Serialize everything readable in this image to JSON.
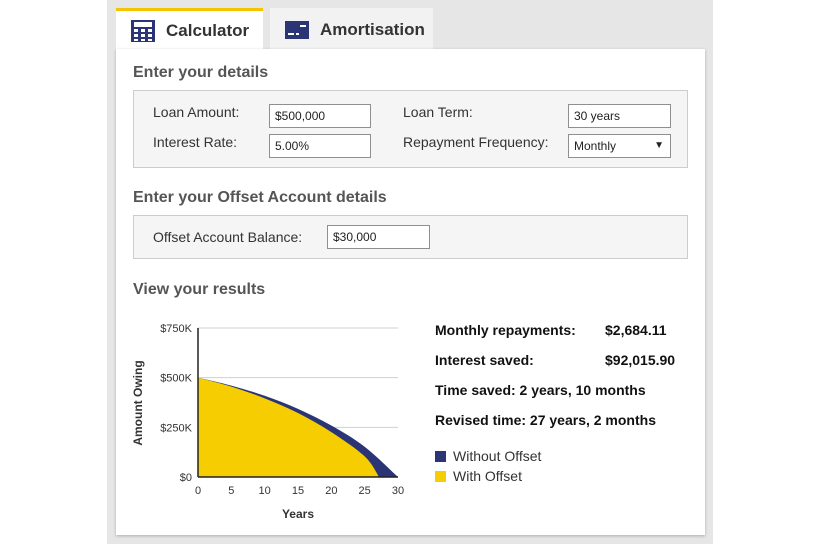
{
  "tabs": [
    {
      "label": "Calculator",
      "icon": "calculator-icon",
      "active": true
    },
    {
      "label": "Amortisation",
      "icon": "card-icon",
      "active": false
    }
  ],
  "details": {
    "title": "Enter your details",
    "loan_amount_label": "Loan Amount:",
    "loan_amount_value": "$500,000",
    "interest_rate_label": "Interest Rate:",
    "interest_rate_value": "5.00%",
    "loan_term_label": "Loan Term:",
    "loan_term_value": "30 years",
    "frequency_label": "Repayment Frequency:",
    "frequency_value": "Monthly"
  },
  "offset": {
    "title": "Enter your Offset Account details",
    "balance_label": "Offset Account Balance:",
    "balance_value": "$30,000"
  },
  "results": {
    "title": "View your results",
    "monthly_label": "Monthly repayments:",
    "monthly_value": "$2,684.11",
    "interest_label": "Interest saved:",
    "interest_value": "$92,015.90",
    "time_saved": "Time saved: 2 years, 10 months",
    "revised_time": "Revised time: 27 years, 2 months"
  },
  "colors": {
    "accent_tab": "#f5c400",
    "without_offset": "#2b3576",
    "with_offset": "#f5cd00"
  },
  "chart_data": {
    "type": "area",
    "xlabel": "Years",
    "ylabel": "Amount Owing",
    "x_ticks": [
      0,
      5,
      10,
      15,
      20,
      25,
      30
    ],
    "y_ticks": [
      0,
      250000,
      500000,
      750000
    ],
    "y_tick_labels": [
      "$0",
      "$250K",
      "$500K",
      "$750K"
    ],
    "xlim": [
      0,
      30
    ],
    "ylim": [
      0,
      750000
    ],
    "grid": true,
    "legend_position": "right",
    "series": [
      {
        "name": "Without Offset",
        "color": "#2b3576",
        "x": [
          0,
          5,
          10,
          15,
          20,
          25,
          30
        ],
        "y": [
          500000,
          460000,
          409000,
          343000,
          259000,
          152000,
          0
        ]
      },
      {
        "name": "With Offset",
        "color": "#f5cd00",
        "x": [
          0,
          5,
          10,
          15,
          20,
          25,
          27.17
        ],
        "y": [
          500000,
          455000,
          396000,
          322000,
          226000,
          104000,
          0
        ]
      }
    ]
  }
}
